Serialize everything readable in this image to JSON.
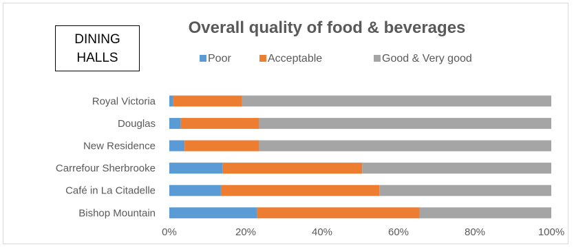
{
  "box_label": {
    "line1": "DINING",
    "line2": "HALLS"
  },
  "chart_data": {
    "type": "bar",
    "orientation": "horizontal",
    "stacked": "percent",
    "title": "Overall quality of food & beverages",
    "categories": [
      "Royal Victoria",
      "Douglas",
      "New Residence",
      "Carrefour Sherbrooke",
      "Café in La Citadelle",
      "Bishop Mountain"
    ],
    "series": [
      {
        "name": "Poor",
        "color": "#5b9bd5",
        "values": [
          1,
          3,
          4,
          14,
          13.5,
          23
        ]
      },
      {
        "name": "Acceptable",
        "color": "#ed7d31",
        "values": [
          18,
          20.5,
          19.5,
          36.5,
          41.5,
          42.5
        ]
      },
      {
        "name": "Good & Very good",
        "color": "#a5a5a5",
        "values": [
          81,
          76.5,
          76.5,
          49.5,
          45,
          34.5
        ]
      }
    ],
    "xlim": [
      0,
      100
    ],
    "xticks": [
      "0%",
      "20%",
      "40%",
      "60%",
      "80%",
      "100%"
    ],
    "xlabel": "",
    "ylabel": "",
    "grid": false,
    "legend": "top"
  }
}
